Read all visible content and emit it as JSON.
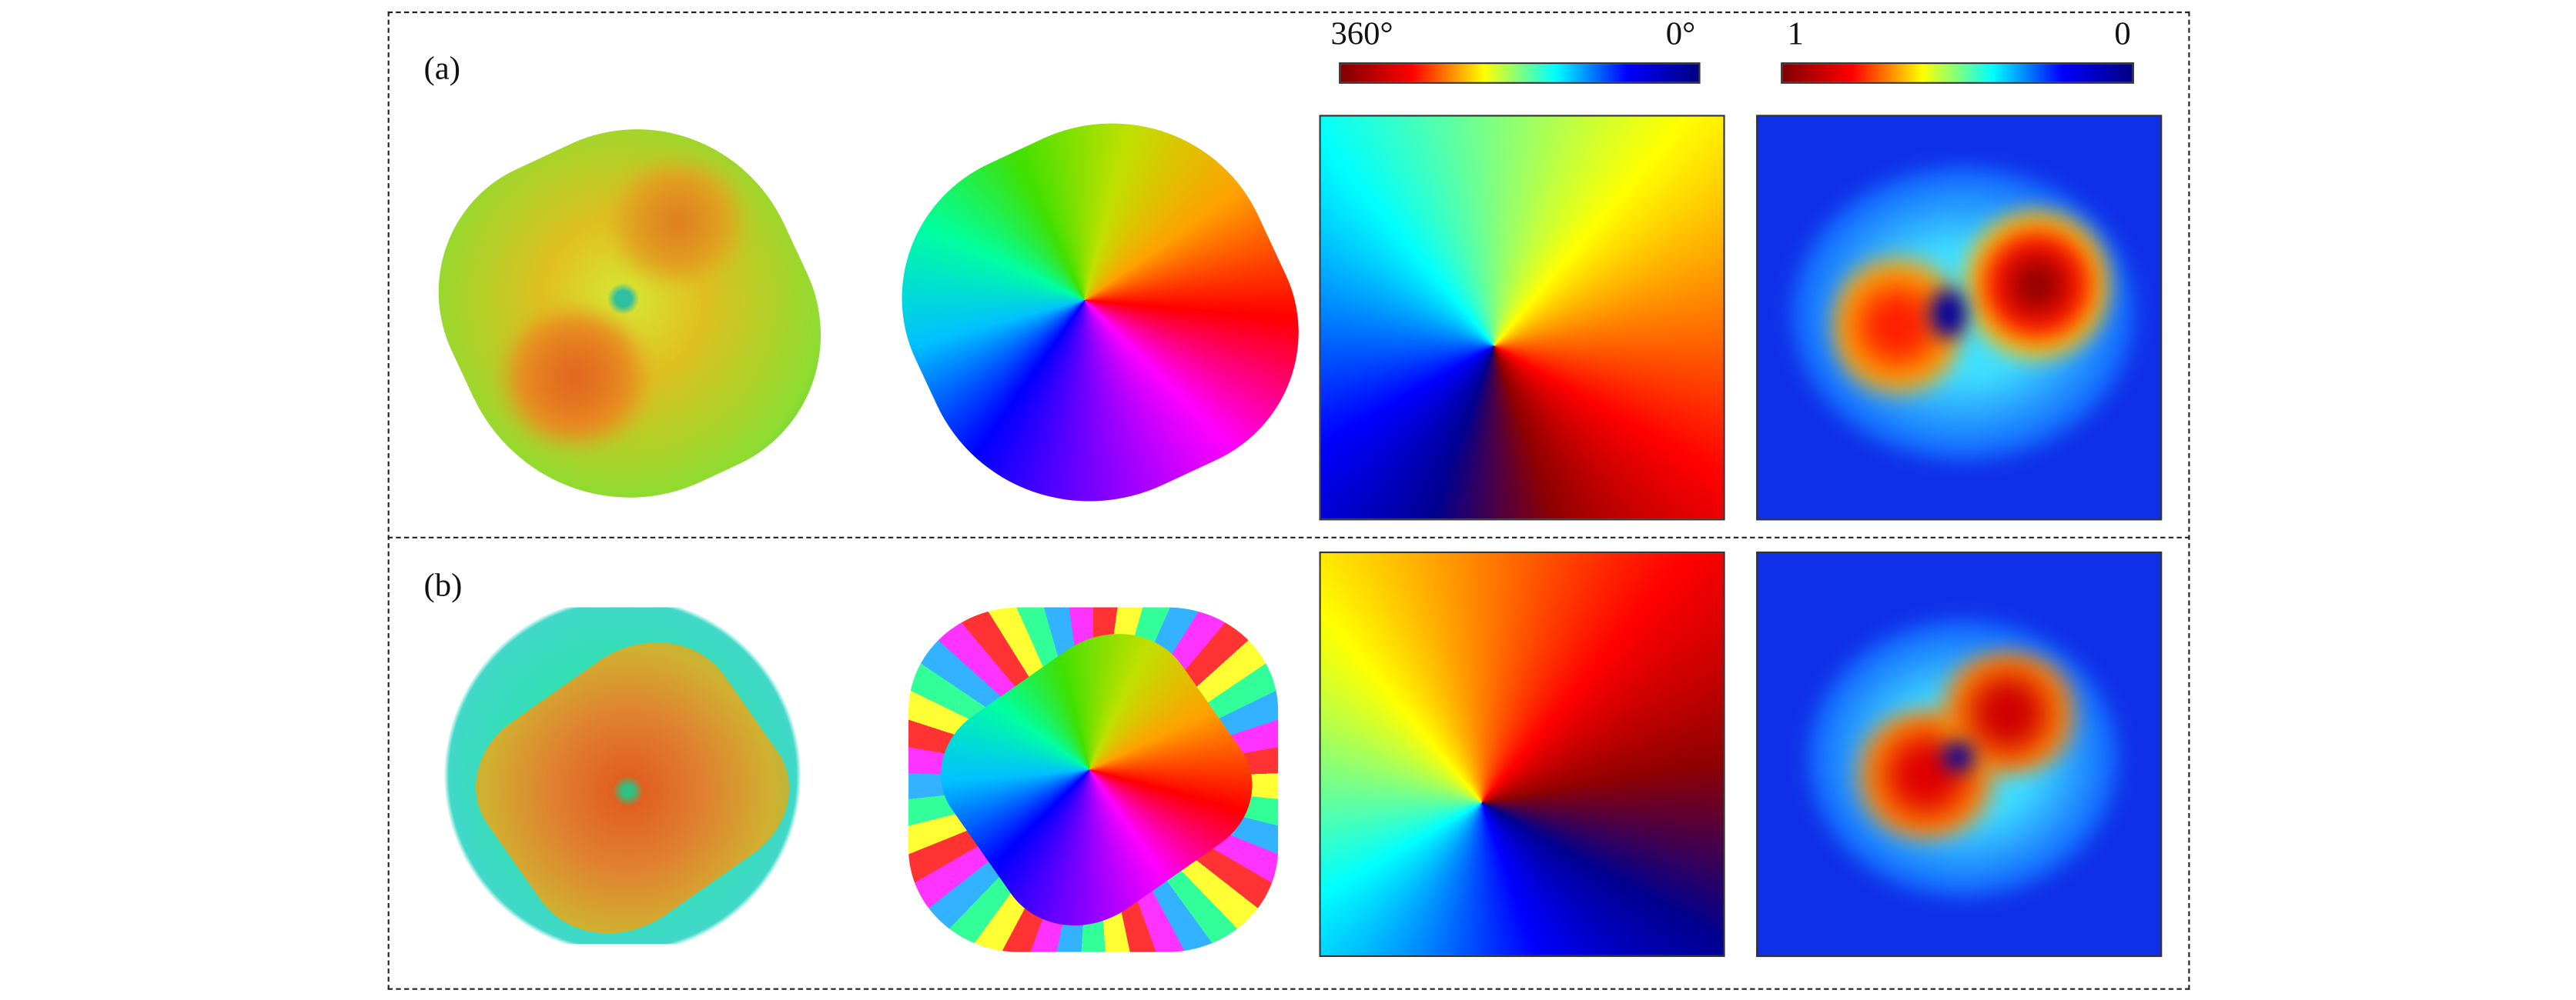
{
  "panels": [
    {
      "label": "(a)"
    },
    {
      "label": "(b)"
    }
  ],
  "colorbars": [
    {
      "left_label": "360°",
      "right_label": "0°"
    },
    {
      "left_label": "1",
      "right_label": "0"
    }
  ]
}
